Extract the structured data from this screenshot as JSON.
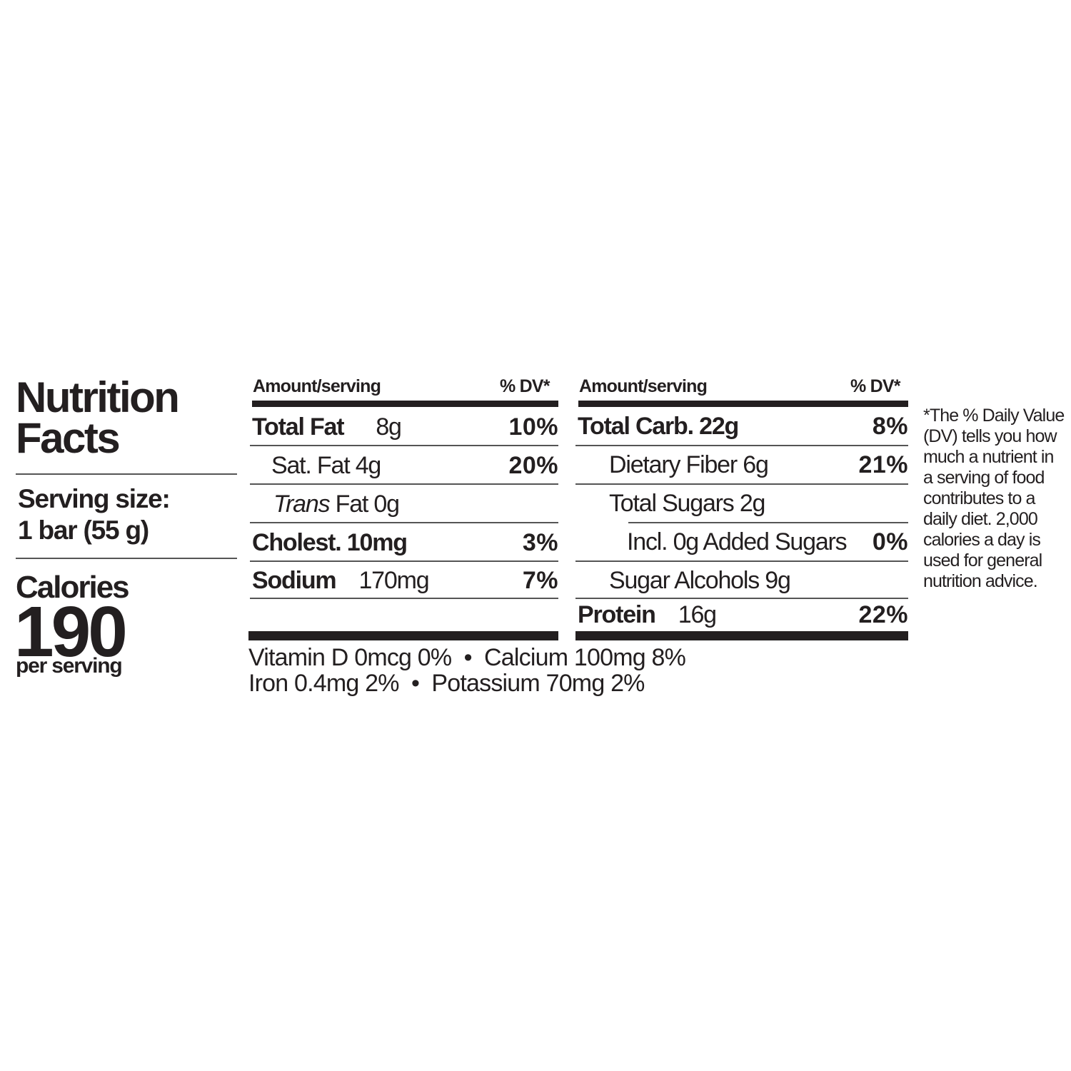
{
  "label": {
    "title_line1": "Nutrition",
    "title_line2": "Facts",
    "serving_label": "Serving size:",
    "serving_value": "1 bar (55 g)",
    "calories_label": "Calories",
    "calories_value": "190",
    "per_serving": "per serving",
    "left_table": {
      "header_amount": "Amount/serving",
      "header_dv": "% DV*",
      "rows": [
        {
          "name": "Total Fat",
          "amount": "8g",
          "dv": "10%"
        },
        {
          "name": "Sat. Fat",
          "amount": "4g",
          "dv": "20%"
        },
        {
          "name_italic": "Trans",
          "name": "Fat",
          "amount": "0g",
          "dv": ""
        },
        {
          "name": "Cholest.",
          "amount": "10mg",
          "dv": "3%"
        },
        {
          "name": "Sodium",
          "amount": "170mg",
          "dv": "7%"
        }
      ]
    },
    "right_table": {
      "header_amount": "Amount/serving",
      "header_dv": "% DV*",
      "rows": [
        {
          "name": "Total Carb.",
          "amount": "22g",
          "dv": "8%"
        },
        {
          "name": "Dietary Fiber",
          "amount": "6g",
          "dv": "21%"
        },
        {
          "name": "Total Sugars",
          "amount": "2g",
          "dv": ""
        },
        {
          "name": "Incl. 0g Added Sugars",
          "amount": "",
          "dv": "0%"
        },
        {
          "name": "Sugar Alcohols",
          "amount": "9g",
          "dv": ""
        },
        {
          "name": "Protein",
          "amount": "16g",
          "dv": "22%"
        }
      ]
    },
    "vitamins_line1": "Vitamin D 0mcg 0%  •  Calcium 100mg 8%",
    "vitamins_line2": "Iron 0.4mg 2%  •  Potassium 70mg 2%",
    "footnote": "*The % Daily Value (DV) tells you how much a nutrient in a serving of food contributes to a daily diet. 2,000 calories a day is used for general nutrition advice."
  }
}
